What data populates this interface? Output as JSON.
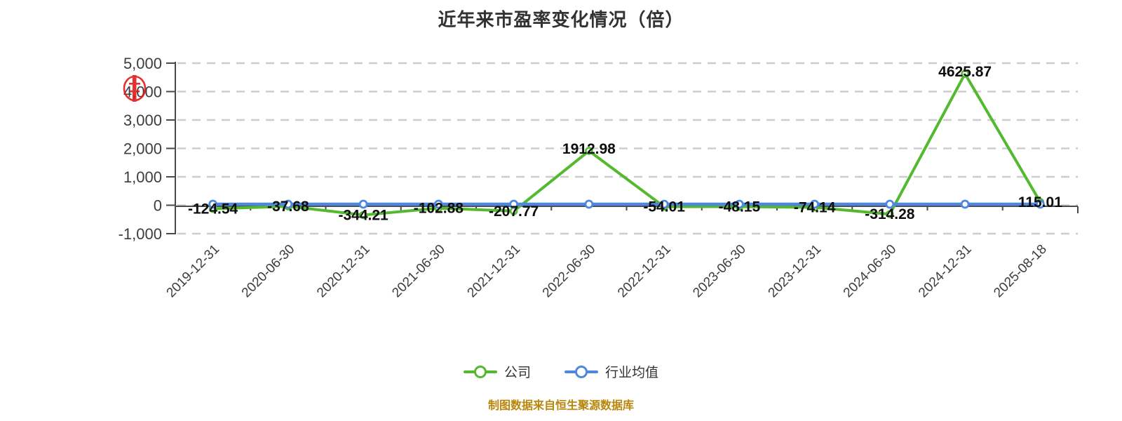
{
  "title": "近年来市盈率变化情况（倍）",
  "footer": "制图数据来自恒生聚源数据库",
  "legend": [
    {
      "label": "公司",
      "color": "#53b92e"
    },
    {
      "label": "行业均值",
      "color": "#4e87e0"
    }
  ],
  "y_axis": {
    "tick_labels": [
      "5,000",
      "4,000",
      "3,000",
      "2,000",
      "1,000",
      "0",
      "-1,000"
    ],
    "tick_values": [
      5000,
      4000,
      3000,
      2000,
      1000,
      0,
      -1000
    ]
  },
  "colors": {
    "company": "#53b92e",
    "industry": "#4e87e0",
    "axis": "#4a4a4a",
    "grid": "#cdcdcd",
    "tick_text": "#3d3d3d",
    "data_label": "#0d0d0d",
    "stamp_red": "#e01515"
  },
  "chart_data": {
    "type": "line",
    "title": "近年来市盈率变化情况（倍）",
    "categories": [
      "2019-12-31",
      "2020-06-30",
      "2020-12-31",
      "2021-06-30",
      "2021-12-31",
      "2022-06-30",
      "2022-12-31",
      "2023-06-30",
      "2023-12-31",
      "2024-06-30",
      "2024-12-31",
      "2025-08-18"
    ],
    "series": [
      {
        "name": "公司",
        "color": "#53b92e",
        "values": [
          -124.54,
          -37.68,
          -344.21,
          -102.88,
          -207.77,
          1912.98,
          -54.01,
          -48.15,
          -74.14,
          -314.28,
          4625.87,
          115.01
        ],
        "labels_shown": true
      },
      {
        "name": "行业均值",
        "color": "#4e87e0",
        "values": [
          0,
          0,
          0,
          0,
          0,
          0,
          0,
          0,
          0,
          0,
          0,
          0
        ],
        "labels_shown": false,
        "note": "unlabeled flat line reading ≈0 on the axis"
      }
    ],
    "ylim": [
      -1000,
      5000
    ],
    "xlabel": "",
    "ylabel": "",
    "grid": "horizontal dashed",
    "legend_position": "bottom"
  }
}
